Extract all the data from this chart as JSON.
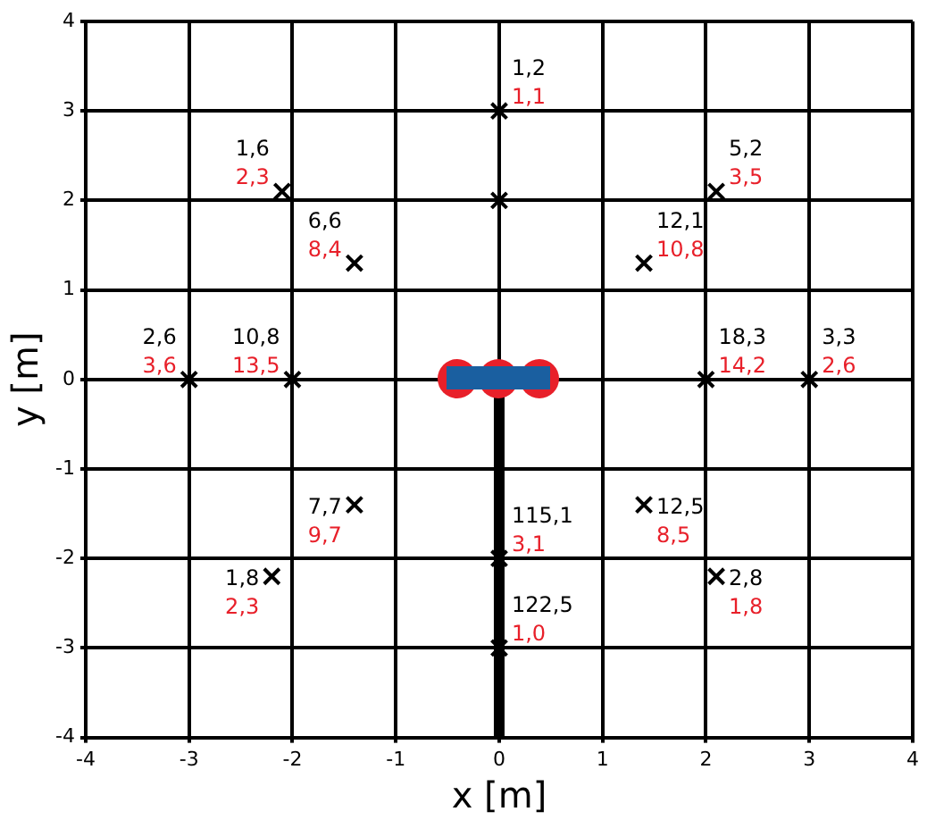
{
  "chart_data": {
    "type": "scatter",
    "xlabel": "x [m]",
    "ylabel": "y [m]",
    "xlim": [
      -4,
      4
    ],
    "ylim": [
      -4,
      4
    ],
    "xticks": [
      -4,
      -3,
      -2,
      -1,
      0,
      1,
      2,
      3,
      4
    ],
    "yticks": [
      -4,
      -3,
      -2,
      -1,
      0,
      1,
      2,
      3,
      4
    ],
    "grid": true,
    "legend": false,
    "marker": "cross",
    "series": [
      {
        "color": "#000000",
        "x": [
          0,
          0,
          -2.1,
          -1.4,
          -3,
          -2,
          2,
          3,
          2.1,
          1.4,
          -1.4,
          -2.2,
          1.4,
          2.1,
          0,
          0
        ],
        "values": [
          3,
          2,
          2.1,
          1.3,
          0,
          0,
          0,
          0,
          2.1,
          1.3,
          -1.4,
          -2.2,
          -1.4,
          -2.2,
          -2,
          -3
        ]
      },
      {
        "type": "line",
        "marker": "none",
        "color": "#000000",
        "x": [
          0,
          0
        ],
        "values": [
          -0.2,
          -4
        ]
      }
    ],
    "annotations": [
      {
        "text": "1,2\n1,1",
        "x": 0,
        "y": 3
      },
      {
        "text": "1,6\n2,3",
        "x": -2.1,
        "y": 2.1
      },
      {
        "text": "6,6\n8,4",
        "x": -1.4,
        "y": 1.3
      },
      {
        "text": "2,6\n3,6",
        "x": -3,
        "y": 0
      },
      {
        "text": "10,8\n13,5",
        "x": -2,
        "y": 0
      },
      {
        "text": "18,3\n14,2",
        "x": 2,
        "y": 0
      },
      {
        "text": "3,3\n2,6",
        "x": 3,
        "y": 0
      },
      {
        "text": "5,2\n3,5",
        "x": 2.1,
        "y": 2.1
      },
      {
        "text": "12,1\n10,8",
        "x": 1.4,
        "y": 1.3
      },
      {
        "text": "7,7\n9,7",
        "x": -1.4,
        "y": -1.4
      },
      {
        "text": "1,8\n2,3",
        "x": -2.2,
        "y": -2.2
      },
      {
        "text": "12,5\n8,5",
        "x": 1.4,
        "y": -1.4
      },
      {
        "text": "2,8\n1,8",
        "x": 2.1,
        "y": -2.2
      },
      {
        "text": "115,1\n3,1",
        "x": 0,
        "y": -2
      },
      {
        "text": "122,5\n1,0",
        "x": 0,
        "y": -3
      }
    ]
  }
}
